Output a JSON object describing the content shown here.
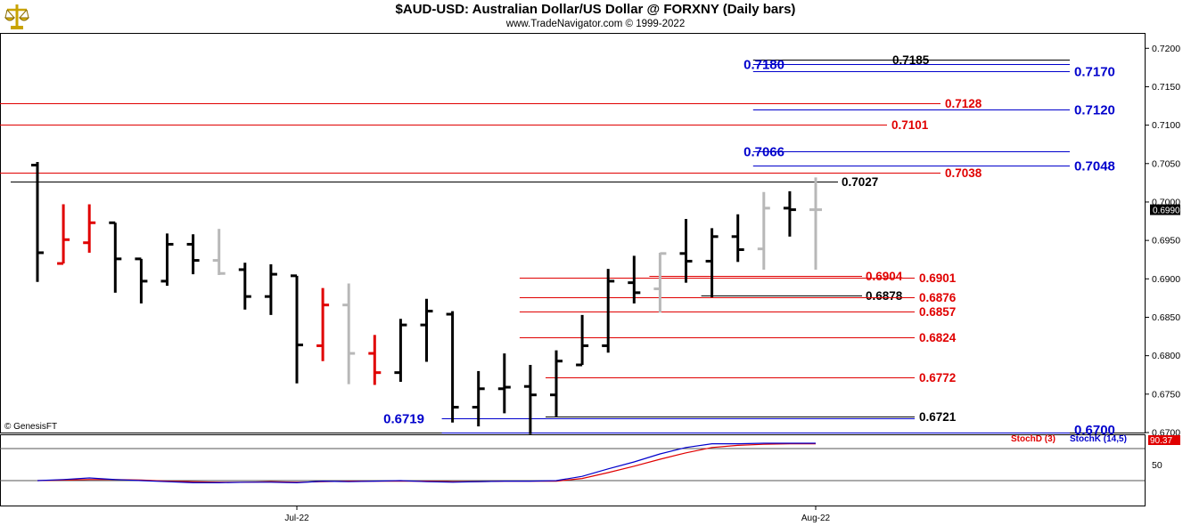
{
  "header": {
    "title": "$AUD-USD:  Australian Dollar/US Dollar @ FORXNY  (Daily bars)",
    "subtitle": "www.TradeNavigator.com © 1999-2022"
  },
  "watermark": "© GenesisFT",
  "colors": {
    "up": "#000000",
    "down": "#e00000",
    "neutral": "#b8b8b8",
    "blue": "#0000cc",
    "red": "#e00000",
    "grid": "#000000"
  },
  "chart_data": [
    {
      "type": "bar",
      "subtype": "ohlc",
      "title": "$AUD-USD:  Australian Dollar/US Dollar @ FORXNY  (Daily bars)",
      "ylim": [
        0.67,
        0.722
      ],
      "y_ticks": [
        "0.7200",
        "0.7150",
        "0.7100",
        "0.7050",
        "0.7000",
        "0.6950",
        "0.6900",
        "0.6850",
        "0.6800",
        "0.6750",
        "0.6700"
      ],
      "x_ticks": [
        {
          "label": "Jul-22",
          "index": 10
        },
        {
          "label": "Aug-22",
          "index": 30
        }
      ],
      "last_price": "0.6990",
      "bars": [
        {
          "h": 0.7052,
          "l": 0.6896,
          "o": 0.7048,
          "c": 0.6934,
          "color": "up"
        },
        {
          "h": 0.6997,
          "l": 0.692,
          "o": 0.692,
          "c": 0.6951,
          "color": "down"
        },
        {
          "h": 0.6997,
          "l": 0.6934,
          "o": 0.6947,
          "c": 0.6973,
          "color": "down"
        },
        {
          "h": 0.6973,
          "l": 0.6882,
          "o": 0.6973,
          "c": 0.6926,
          "color": "up"
        },
        {
          "h": 0.6926,
          "l": 0.6868,
          "o": 0.6926,
          "c": 0.6897,
          "color": "up"
        },
        {
          "h": 0.6959,
          "l": 0.6891,
          "o": 0.6897,
          "c": 0.6945,
          "color": "up"
        },
        {
          "h": 0.6958,
          "l": 0.6906,
          "o": 0.6945,
          "c": 0.6924,
          "color": "up"
        },
        {
          "h": 0.6965,
          "l": 0.6905,
          "o": 0.6924,
          "c": 0.6907,
          "color": "neutral"
        },
        {
          "h": 0.6921,
          "l": 0.686,
          "o": 0.6912,
          "c": 0.6877,
          "color": "up"
        },
        {
          "h": 0.6919,
          "l": 0.6853,
          "o": 0.6877,
          "c": 0.6906,
          "color": "up"
        },
        {
          "h": 0.6904,
          "l": 0.6764,
          "o": 0.6904,
          "c": 0.6814,
          "color": "up"
        },
        {
          "h": 0.6888,
          "l": 0.6793,
          "o": 0.6813,
          "c": 0.6866,
          "color": "down"
        },
        {
          "h": 0.6894,
          "l": 0.6763,
          "o": 0.6866,
          "c": 0.6803,
          "color": "neutral"
        },
        {
          "h": 0.6827,
          "l": 0.6762,
          "o": 0.6803,
          "c": 0.6778,
          "color": "down"
        },
        {
          "h": 0.6848,
          "l": 0.6766,
          "o": 0.6778,
          "c": 0.684,
          "color": "up"
        },
        {
          "h": 0.6874,
          "l": 0.6792,
          "o": 0.684,
          "c": 0.6858,
          "color": "up"
        },
        {
          "h": 0.6858,
          "l": 0.6713,
          "o": 0.6854,
          "c": 0.6733,
          "color": "up"
        },
        {
          "h": 0.678,
          "l": 0.6708,
          "o": 0.6733,
          "c": 0.6757,
          "color": "up"
        },
        {
          "h": 0.6803,
          "l": 0.6725,
          "o": 0.6757,
          "c": 0.6759,
          "color": "up"
        },
        {
          "h": 0.6788,
          "l": 0.6698,
          "o": 0.676,
          "c": 0.6749,
          "color": "up"
        },
        {
          "h": 0.6807,
          "l": 0.6721,
          "o": 0.6749,
          "c": 0.6793,
          "color": "up"
        },
        {
          "h": 0.6853,
          "l": 0.6788,
          "o": 0.6788,
          "c": 0.6813,
          "color": "up"
        },
        {
          "h": 0.6913,
          "l": 0.6804,
          "o": 0.6813,
          "c": 0.6897,
          "color": "up"
        },
        {
          "h": 0.693,
          "l": 0.6868,
          "o": 0.6895,
          "c": 0.6882,
          "color": "up"
        },
        {
          "h": 0.6934,
          "l": 0.6856,
          "o": 0.6887,
          "c": 0.6933,
          "color": "neutral"
        },
        {
          "h": 0.6978,
          "l": 0.6895,
          "o": 0.6933,
          "c": 0.6923,
          "color": "up"
        },
        {
          "h": 0.6966,
          "l": 0.6876,
          "o": 0.6923,
          "c": 0.6955,
          "color": "up"
        },
        {
          "h": 0.6984,
          "l": 0.6922,
          "o": 0.6955,
          "c": 0.6938,
          "color": "up"
        },
        {
          "h": 0.7013,
          "l": 0.6912,
          "o": 0.6939,
          "c": 0.6992,
          "color": "neutral"
        },
        {
          "h": 0.7014,
          "l": 0.6955,
          "o": 0.6992,
          "c": 0.699,
          "color": "up"
        },
        {
          "h": 0.7032,
          "l": 0.6912,
          "o": 0.699,
          "c": 0.699,
          "color": "neutral"
        }
      ],
      "levels": [
        {
          "value": 0.7185,
          "label": "0.7185",
          "color": "black",
          "x_from_bar": 28
        },
        {
          "value": 0.718,
          "label": "0.7180",
          "color": "blue",
          "x_from_bar": 28
        },
        {
          "value": 0.717,
          "label": "0.7170",
          "color": "blue",
          "x_from_bar": 28
        },
        {
          "value": 0.7128,
          "label": "0.7128",
          "color": "red",
          "x_from_bar": -1
        },
        {
          "value": 0.712,
          "label": "0.7120",
          "color": "blue",
          "x_from_bar": 28
        },
        {
          "value": 0.7101,
          "label": "0.7101",
          "color": "red",
          "x_from_bar": -1
        },
        {
          "value": 0.7066,
          "label": "0.7066",
          "color": "blue",
          "x_from_bar": 28
        },
        {
          "value": 0.7048,
          "label": "0.7048",
          "color": "blue",
          "x_from_bar": 28
        },
        {
          "value": 0.7038,
          "label": "0.7038",
          "color": "red",
          "x_from_bar": -1
        },
        {
          "value": 0.7027,
          "label": "0.7027",
          "color": "black",
          "x_from_bar": -1
        },
        {
          "value": 0.6904,
          "label": "0.6904",
          "color": "red",
          "x_from_bar": 24
        },
        {
          "value": 0.6901,
          "label": "0.6901",
          "color": "red",
          "x_from_bar": 19
        },
        {
          "value": 0.6878,
          "label": "0.6878",
          "color": "black",
          "x_from_bar": 26
        },
        {
          "value": 0.6876,
          "label": "0.6876",
          "color": "red",
          "x_from_bar": 19
        },
        {
          "value": 0.6857,
          "label": "0.6857",
          "color": "red",
          "x_from_bar": 19
        },
        {
          "value": 0.6824,
          "label": "0.6824",
          "color": "red",
          "x_from_bar": 19
        },
        {
          "value": 0.6772,
          "label": "0.6772",
          "color": "red",
          "x_from_bar": 20
        },
        {
          "value": 0.6721,
          "label": "0.6721",
          "color": "black",
          "x_from_bar": 20
        },
        {
          "value": 0.6719,
          "label": "0.6719",
          "color": "blue",
          "x_from_bar": 16
        },
        {
          "value": 0.67,
          "label": "0.6700",
          "color": "blue",
          "x_from_bar": 16
        }
      ]
    },
    {
      "type": "line",
      "ylim": [
        0,
        100
      ],
      "y_ticks": [
        "50"
      ],
      "reference_lines": [
        80,
        20
      ],
      "last_value": "90.37",
      "series": [
        {
          "name": "StochD (3)",
          "color": "#e00000",
          "values": [
            20,
            21,
            22,
            22,
            21,
            19,
            18,
            17,
            17,
            18,
            17,
            18,
            19,
            19,
            19,
            19,
            18,
            18,
            19,
            19,
            19,
            24,
            35,
            47,
            60,
            72,
            82,
            86,
            88,
            89,
            89
          ]
        },
        {
          "name": "StochK (14,5)",
          "color": "#0000cc",
          "values": [
            20,
            22,
            25,
            22,
            20,
            18,
            16,
            16,
            17,
            17,
            16,
            19,
            18,
            19,
            20,
            18,
            17,
            18,
            19,
            19,
            20,
            28,
            42,
            55,
            70,
            82,
            89,
            89,
            90,
            90,
            90
          ]
        }
      ]
    }
  ]
}
